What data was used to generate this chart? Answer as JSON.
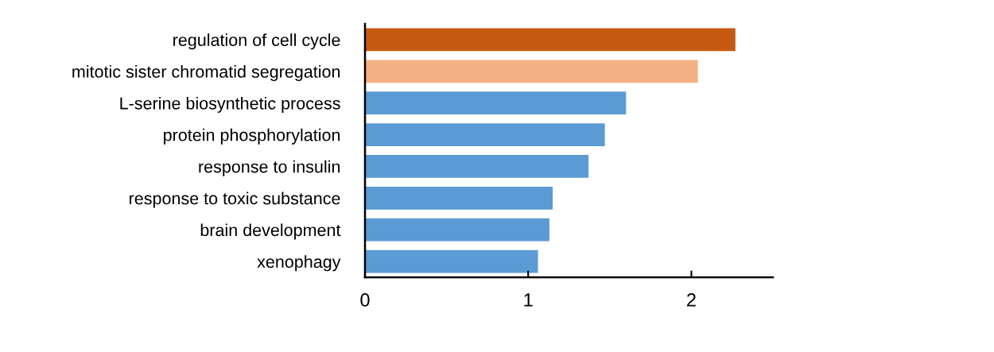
{
  "chart_data": {
    "type": "bar",
    "orientation": "horizontal",
    "categories": [
      "regulation of cell cycle",
      "mitotic sister chromatid segregation",
      "L-serine biosynthetic process",
      "protein phosphorylation",
      "response to insulin",
      "response to toxic substance",
      "brain development",
      "xenophagy"
    ],
    "values": [
      2.27,
      2.04,
      1.6,
      1.47,
      1.37,
      1.15,
      1.13,
      1.06
    ],
    "colors": [
      "#c55a11",
      "#f4b183",
      "#5b9bd5",
      "#5b9bd5",
      "#5b9bd5",
      "#5b9bd5",
      "#5b9bd5",
      "#5b9bd5"
    ],
    "xlim": [
      0,
      2.5
    ],
    "xticks": [
      0,
      1,
      2
    ],
    "grid": false,
    "legend": false
  }
}
